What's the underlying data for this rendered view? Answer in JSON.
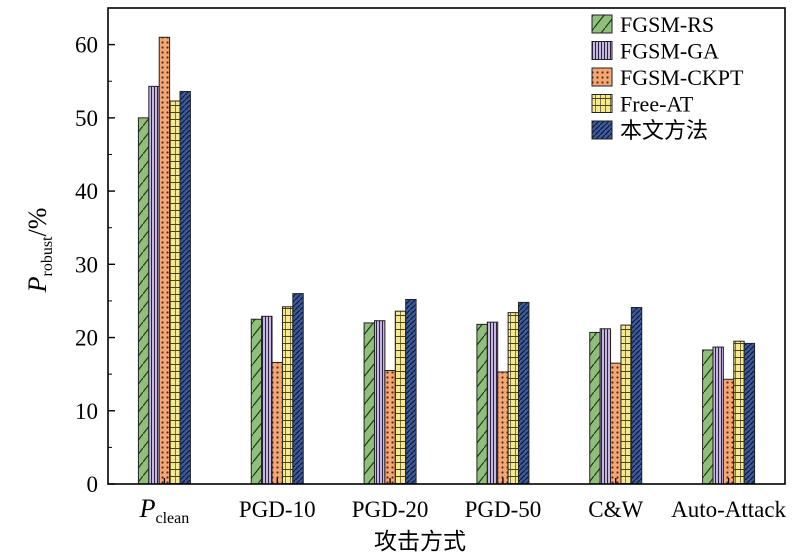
{
  "chart_data": {
    "type": "bar",
    "title": "",
    "xlabel": "攻击方式",
    "ylabel": {
      "main": "P",
      "sub": "robust",
      "suffix": "/%"
    },
    "ylim": [
      0,
      65
    ],
    "yticks": [
      0,
      10,
      20,
      30,
      40,
      50,
      60
    ],
    "grid": false,
    "legend_position": "top-right",
    "categories": [
      {
        "main": "P",
        "sub": "clean"
      },
      {
        "main": "PGD-10",
        "sub": ""
      },
      {
        "main": "PGD-20",
        "sub": ""
      },
      {
        "main": "PGD-50",
        "sub": ""
      },
      {
        "main": "C&W",
        "sub": ""
      },
      {
        "main": "Auto-Attack",
        "sub": ""
      }
    ],
    "series": [
      {
        "name": "FGSM-RS",
        "color": "#8fbf7a",
        "pattern": "diag-slash",
        "values": [
          50.0,
          22.5,
          22.0,
          21.8,
          20.7,
          18.3
        ]
      },
      {
        "name": "FGSM-GA",
        "color": "#b9a6d6",
        "pattern": "vertical-lines",
        "values": [
          54.3,
          22.9,
          22.3,
          22.1,
          21.2,
          18.7
        ]
      },
      {
        "name": "FGSM-CKPT",
        "color": "#f4a674",
        "pattern": "dots",
        "values": [
          61.0,
          16.6,
          15.5,
          15.3,
          16.5,
          14.3
        ]
      },
      {
        "name": "Free-AT",
        "color": "#f3e58a",
        "pattern": "grid",
        "values": [
          52.3,
          24.2,
          23.6,
          23.4,
          21.7,
          19.5
        ]
      },
      {
        "name": "本文方法",
        "color": "#3c5a9c",
        "pattern": "diag-hatch",
        "values": [
          53.6,
          26.0,
          25.2,
          24.8,
          24.1,
          19.2
        ]
      }
    ]
  }
}
